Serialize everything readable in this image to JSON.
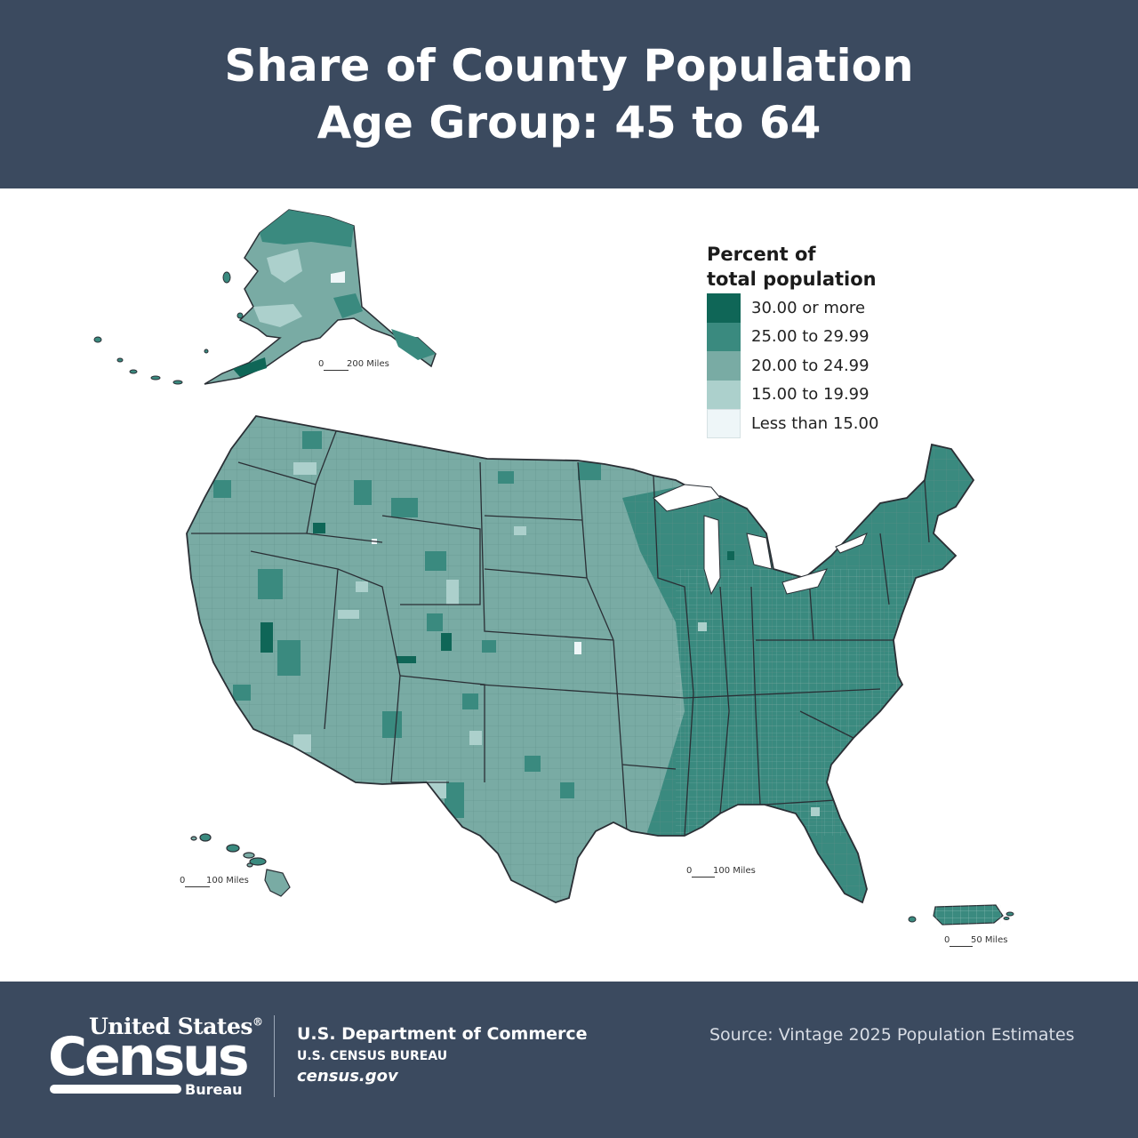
{
  "title": {
    "line1": "Share of County Population",
    "line2": "Age Group: 45 to 64"
  },
  "legend": {
    "title_line1": "Percent of",
    "title_line2": "total population",
    "items": [
      {
        "label": "30.00 or more",
        "color": "#0f6657"
      },
      {
        "label": "25.00 to 29.99",
        "color": "#3a8a7f"
      },
      {
        "label": "20.00 to 24.99",
        "color": "#79aba4"
      },
      {
        "label": "15.00 to 19.99",
        "color": "#acd0cc"
      },
      {
        "label": "Less than 15.00",
        "color": "#eef6f8"
      }
    ]
  },
  "scales": {
    "alaska": {
      "zero": "0",
      "label": "200 Miles"
    },
    "conus": {
      "zero": "0",
      "label": "100 Miles"
    },
    "hawaii": {
      "zero": "0",
      "label": "100 Miles"
    },
    "puerto_rico": {
      "zero": "0",
      "label": "50 Miles"
    }
  },
  "footer": {
    "logo_line1": "United States",
    "logo_registered": "®",
    "logo_line2": "Census",
    "logo_line3": "Bureau",
    "department": "U.S. Department of Commerce",
    "bureau": "U.S. CENSUS BUREAU",
    "website": "census.gov",
    "source": "Source: Vintage 2025 Population Estimates"
  },
  "colors": {
    "banner": "#3b4a5f",
    "base_fill": "#79aba4",
    "dark_fill": "#3a8a7f",
    "darkest_fill": "#0f6657",
    "light_fill": "#acd0cc",
    "lightest_fill": "#eef6f8",
    "border": "#2a2f35"
  }
}
